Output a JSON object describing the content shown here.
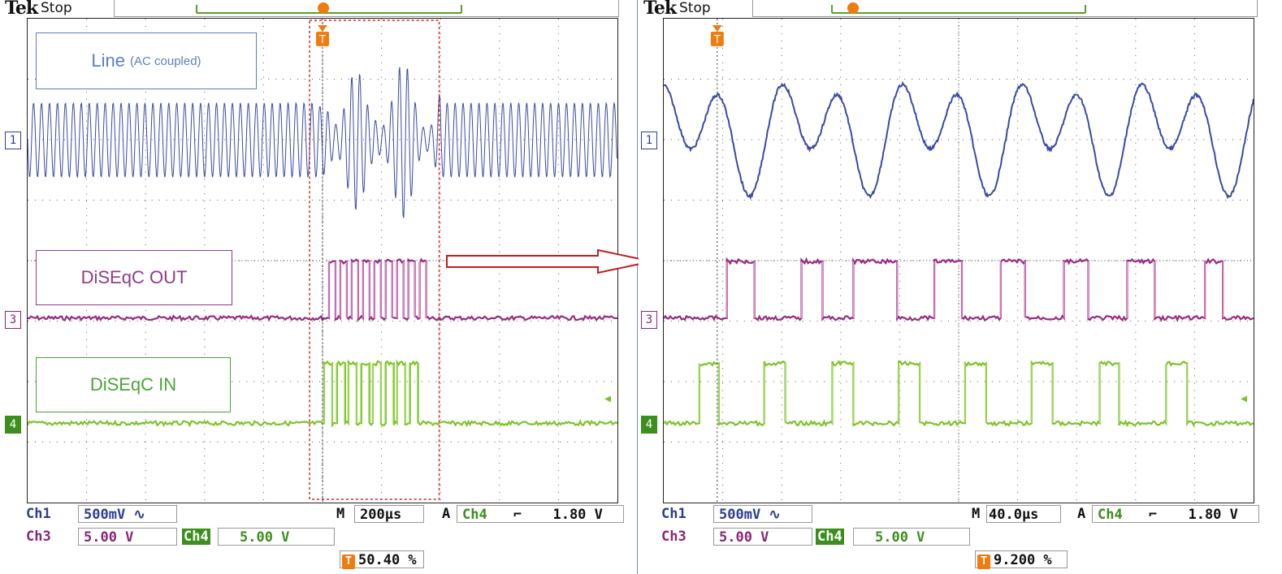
{
  "left": {
    "logo": "Tek",
    "status": "Stop",
    "labels": {
      "line": "Line",
      "line_note": "(AC coupled)",
      "out": "DiSEqC OUT",
      "in": "DiSEqC IN"
    },
    "markers": {
      "ch1": "1",
      "ch3": "3",
      "ch4": "4",
      "trigger": "T"
    },
    "readout": {
      "ch1_name": "Ch1",
      "ch1_scale": "500mV",
      "ch3_name": "Ch3",
      "ch3_scale": "5.00 V",
      "ch4_name": "Ch4",
      "ch4_scale": "5.00 V",
      "m_label": "M",
      "timebase": "200µs",
      "a_label": "A",
      "trig_ch": "Ch4",
      "trig_level": "1.80 V",
      "trig_pos": "50.40 %"
    }
  },
  "right": {
    "logo": "Tek",
    "status": "Stop",
    "markers": {
      "ch1": "1",
      "ch3": "3",
      "ch4": "4",
      "trigger": "T"
    },
    "readout": {
      "ch1_name": "Ch1",
      "ch1_scale": "500mV",
      "ch3_name": "Ch3",
      "ch3_scale": "5.00 V",
      "ch4_name": "Ch4",
      "ch4_scale": "5.00 V",
      "m_label": "M",
      "timebase": "40.0µs",
      "a_label": "A",
      "trig_ch": "Ch4",
      "trig_level": "1.80 V",
      "trig_pos": "9.200 %"
    }
  },
  "colors": {
    "ch1": "#3b4aa3",
    "ch3": "#9a2a84",
    "ch3_light": "#e59bd0",
    "ch4": "#7cc425",
    "trigger": "#f07c10",
    "zoom_box": "#d9261c"
  },
  "icons": [
    "ac-coupling-icon",
    "falling-edge-icon",
    "trigger-marker-icon",
    "zoom-arrow-icon"
  ]
}
